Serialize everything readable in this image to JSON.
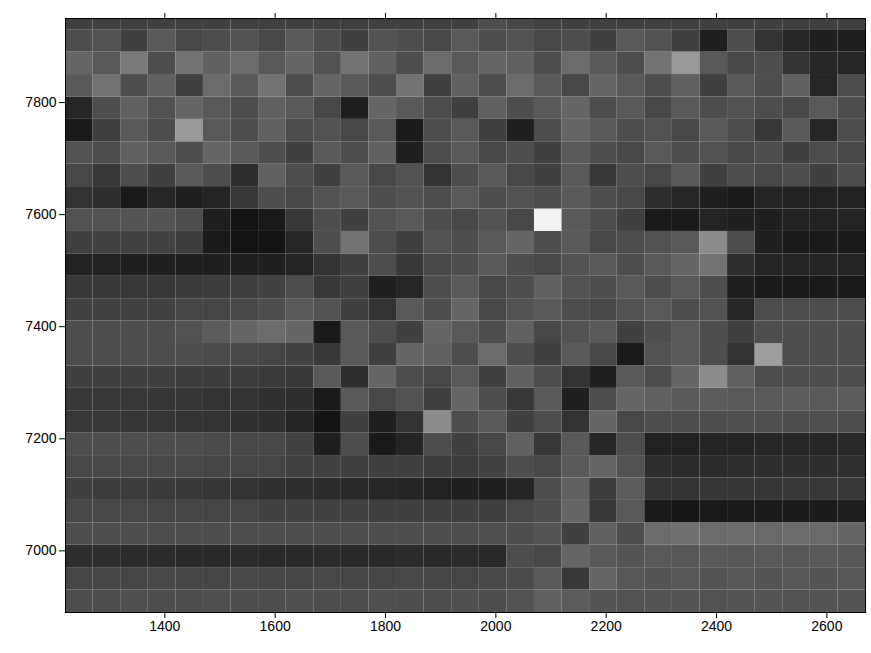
{
  "chart_data": {
    "type": "heatmap",
    "xlim": [
      1220,
      2670
    ],
    "ylim": [
      6890,
      7950
    ],
    "xticks": [
      1400,
      1600,
      1800,
      2000,
      2200,
      2400,
      2600
    ],
    "yticks": [
      7000,
      7200,
      7400,
      7600,
      7800
    ],
    "grid": false,
    "x_edges": [
      1220,
      1270,
      1320,
      1370,
      1420,
      1470,
      1520,
      1570,
      1620,
      1670,
      1720,
      1770,
      1820,
      1870,
      1920,
      1970,
      2020,
      2070,
      2120,
      2170,
      2220,
      2270,
      2320,
      2370,
      2420,
      2470,
      2520,
      2570,
      2620,
      2670
    ],
    "y_edges": [
      6890,
      6930,
      6970,
      7010,
      7050,
      7090,
      7130,
      7170,
      7210,
      7250,
      7290,
      7330,
      7370,
      7410,
      7450,
      7490,
      7530,
      7570,
      7610,
      7650,
      7690,
      7730,
      7770,
      7810,
      7850,
      7890,
      7930,
      7950
    ],
    "zlim": [
      0,
      1
    ],
    "cells": [
      [
        0.3,
        0.3,
        0.31,
        0.3,
        0.3,
        0.31,
        0.3,
        0.3,
        0.31,
        0.3,
        0.3,
        0.31,
        0.3,
        0.3,
        0.31,
        0.3,
        0.32,
        0.38,
        0.36,
        0.33,
        0.32,
        0.33,
        0.33,
        0.32,
        0.33,
        0.33,
        0.32,
        0.33,
        0.33
      ],
      [
        0.27,
        0.27,
        0.27,
        0.28,
        0.27,
        0.27,
        0.28,
        0.27,
        0.27,
        0.28,
        0.27,
        0.27,
        0.28,
        0.27,
        0.27,
        0.28,
        0.29,
        0.35,
        0.22,
        0.4,
        0.34,
        0.33,
        0.34,
        0.33,
        0.34,
        0.33,
        0.34,
        0.33,
        0.34
      ],
      [
        0.18,
        0.18,
        0.17,
        0.17,
        0.16,
        0.16,
        0.17,
        0.16,
        0.16,
        0.17,
        0.16,
        0.16,
        0.17,
        0.16,
        0.17,
        0.16,
        0.3,
        0.28,
        0.4,
        0.35,
        0.33,
        0.35,
        0.34,
        0.35,
        0.34,
        0.35,
        0.34,
        0.35,
        0.34
      ],
      [
        0.3,
        0.3,
        0.3,
        0.3,
        0.3,
        0.3,
        0.3,
        0.3,
        0.3,
        0.3,
        0.3,
        0.3,
        0.3,
        0.3,
        0.3,
        0.31,
        0.3,
        0.33,
        0.25,
        0.38,
        0.3,
        0.42,
        0.44,
        0.42,
        0.42,
        0.41,
        0.42,
        0.41,
        0.4
      ],
      [
        0.28,
        0.28,
        0.28,
        0.27,
        0.27,
        0.27,
        0.27,
        0.26,
        0.26,
        0.26,
        0.26,
        0.25,
        0.25,
        0.25,
        0.25,
        0.25,
        0.28,
        0.3,
        0.4,
        0.22,
        0.35,
        0.1,
        0.09,
        0.1,
        0.1,
        0.1,
        0.11,
        0.11,
        0.12
      ],
      [
        0.25,
        0.24,
        0.24,
        0.23,
        0.22,
        0.21,
        0.2,
        0.19,
        0.18,
        0.17,
        0.16,
        0.15,
        0.14,
        0.13,
        0.12,
        0.12,
        0.14,
        0.3,
        0.38,
        0.24,
        0.36,
        0.2,
        0.2,
        0.21,
        0.21,
        0.21,
        0.22,
        0.22,
        0.22
      ],
      [
        0.28,
        0.28,
        0.28,
        0.28,
        0.28,
        0.27,
        0.27,
        0.27,
        0.26,
        0.26,
        0.25,
        0.25,
        0.25,
        0.24,
        0.24,
        0.26,
        0.3,
        0.28,
        0.35,
        0.4,
        0.32,
        0.18,
        0.17,
        0.17,
        0.18,
        0.18,
        0.18,
        0.18,
        0.19
      ],
      [
        0.3,
        0.3,
        0.3,
        0.3,
        0.3,
        0.29,
        0.28,
        0.28,
        0.26,
        0.12,
        0.3,
        0.1,
        0.14,
        0.3,
        0.25,
        0.28,
        0.38,
        0.22,
        0.35,
        0.15,
        0.3,
        0.13,
        0.13,
        0.14,
        0.14,
        0.15,
        0.15,
        0.15,
        0.16
      ],
      [
        0.22,
        0.22,
        0.21,
        0.21,
        0.2,
        0.2,
        0.19,
        0.18,
        0.14,
        0.08,
        0.25,
        0.12,
        0.2,
        0.55,
        0.3,
        0.35,
        0.25,
        0.3,
        0.2,
        0.4,
        0.28,
        0.3,
        0.3,
        0.3,
        0.31,
        0.31,
        0.3,
        0.31,
        0.3
      ],
      [
        0.22,
        0.22,
        0.22,
        0.21,
        0.21,
        0.2,
        0.2,
        0.19,
        0.18,
        0.1,
        0.35,
        0.28,
        0.32,
        0.25,
        0.4,
        0.3,
        0.22,
        0.35,
        0.12,
        0.3,
        0.4,
        0.38,
        0.35,
        0.36,
        0.35,
        0.35,
        0.36,
        0.35,
        0.36
      ],
      [
        0.25,
        0.25,
        0.25,
        0.25,
        0.24,
        0.24,
        0.24,
        0.23,
        0.22,
        0.35,
        0.18,
        0.4,
        0.3,
        0.28,
        0.35,
        0.25,
        0.38,
        0.3,
        0.2,
        0.12,
        0.35,
        0.3,
        0.4,
        0.55,
        0.38,
        0.3,
        0.3,
        0.3,
        0.3
      ],
      [
        0.3,
        0.3,
        0.3,
        0.3,
        0.3,
        0.29,
        0.28,
        0.27,
        0.26,
        0.22,
        0.35,
        0.25,
        0.4,
        0.38,
        0.3,
        0.42,
        0.3,
        0.25,
        0.35,
        0.28,
        0.1,
        0.32,
        0.35,
        0.3,
        0.2,
        0.62,
        0.3,
        0.3,
        0.3
      ],
      [
        0.3,
        0.3,
        0.3,
        0.3,
        0.32,
        0.36,
        0.4,
        0.42,
        0.4,
        0.1,
        0.35,
        0.3,
        0.25,
        0.4,
        0.35,
        0.3,
        0.38,
        0.28,
        0.32,
        0.35,
        0.25,
        0.3,
        0.35,
        0.3,
        0.25,
        0.3,
        0.3,
        0.3,
        0.3
      ],
      [
        0.26,
        0.26,
        0.26,
        0.26,
        0.27,
        0.27,
        0.28,
        0.3,
        0.35,
        0.32,
        0.25,
        0.2,
        0.35,
        0.3,
        0.4,
        0.28,
        0.32,
        0.35,
        0.3,
        0.28,
        0.32,
        0.35,
        0.3,
        0.32,
        0.15,
        0.3,
        0.3,
        0.3,
        0.3
      ],
      [
        0.22,
        0.22,
        0.22,
        0.22,
        0.23,
        0.24,
        0.25,
        0.26,
        0.3,
        0.22,
        0.25,
        0.12,
        0.15,
        0.3,
        0.35,
        0.28,
        0.3,
        0.38,
        0.32,
        0.3,
        0.35,
        0.3,
        0.35,
        0.3,
        0.12,
        0.1,
        0.1,
        0.1,
        0.1
      ],
      [
        0.13,
        0.13,
        0.12,
        0.12,
        0.12,
        0.12,
        0.12,
        0.12,
        0.14,
        0.2,
        0.25,
        0.3,
        0.22,
        0.28,
        0.3,
        0.35,
        0.3,
        0.28,
        0.32,
        0.35,
        0.3,
        0.35,
        0.4,
        0.45,
        0.18,
        0.14,
        0.14,
        0.14,
        0.14
      ],
      [
        0.25,
        0.26,
        0.26,
        0.26,
        0.24,
        0.1,
        0.08,
        0.08,
        0.15,
        0.3,
        0.45,
        0.3,
        0.25,
        0.32,
        0.3,
        0.35,
        0.4,
        0.3,
        0.35,
        0.28,
        0.3,
        0.32,
        0.35,
        0.55,
        0.3,
        0.12,
        0.1,
        0.1,
        0.1
      ],
      [
        0.32,
        0.32,
        0.33,
        0.33,
        0.3,
        0.12,
        0.08,
        0.1,
        0.22,
        0.3,
        0.25,
        0.32,
        0.35,
        0.3,
        0.28,
        0.32,
        0.28,
        0.95,
        0.35,
        0.3,
        0.25,
        0.1,
        0.1,
        0.14,
        0.12,
        0.12,
        0.13,
        0.13,
        0.14
      ],
      [
        0.2,
        0.18,
        0.1,
        0.15,
        0.12,
        0.14,
        0.22,
        0.3,
        0.28,
        0.32,
        0.35,
        0.3,
        0.32,
        0.3,
        0.35,
        0.3,
        0.32,
        0.3,
        0.35,
        0.3,
        0.28,
        0.18,
        0.15,
        0.12,
        0.1,
        0.14,
        0.13,
        0.13,
        0.13
      ],
      [
        0.28,
        0.22,
        0.3,
        0.25,
        0.35,
        0.3,
        0.18,
        0.38,
        0.3,
        0.25,
        0.35,
        0.28,
        0.32,
        0.2,
        0.3,
        0.35,
        0.28,
        0.25,
        0.35,
        0.22,
        0.3,
        0.28,
        0.35,
        0.25,
        0.3,
        0.28,
        0.3,
        0.25,
        0.3
      ],
      [
        0.32,
        0.3,
        0.38,
        0.35,
        0.3,
        0.4,
        0.35,
        0.3,
        0.25,
        0.35,
        0.3,
        0.38,
        0.12,
        0.3,
        0.35,
        0.28,
        0.3,
        0.25,
        0.35,
        0.3,
        0.28,
        0.35,
        0.3,
        0.32,
        0.28,
        0.3,
        0.25,
        0.3,
        0.28
      ],
      [
        0.1,
        0.25,
        0.35,
        0.3,
        0.6,
        0.35,
        0.3,
        0.38,
        0.3,
        0.32,
        0.28,
        0.35,
        0.1,
        0.3,
        0.35,
        0.25,
        0.12,
        0.3,
        0.4,
        0.35,
        0.3,
        0.32,
        0.28,
        0.35,
        0.3,
        0.22,
        0.35,
        0.15,
        0.3
      ],
      [
        0.15,
        0.3,
        0.38,
        0.32,
        0.4,
        0.35,
        0.3,
        0.38,
        0.35,
        0.28,
        0.12,
        0.4,
        0.35,
        0.3,
        0.25,
        0.38,
        0.3,
        0.35,
        0.4,
        0.3,
        0.35,
        0.28,
        0.35,
        0.3,
        0.32,
        0.3,
        0.28,
        0.35,
        0.3
      ],
      [
        0.35,
        0.45,
        0.3,
        0.38,
        0.25,
        0.42,
        0.35,
        0.45,
        0.3,
        0.4,
        0.35,
        0.3,
        0.45,
        0.25,
        0.38,
        0.3,
        0.42,
        0.35,
        0.28,
        0.4,
        0.35,
        0.3,
        0.38,
        0.25,
        0.35,
        0.3,
        0.38,
        0.15,
        0.3
      ],
      [
        0.4,
        0.35,
        0.48,
        0.3,
        0.45,
        0.38,
        0.42,
        0.35,
        0.4,
        0.32,
        0.45,
        0.38,
        0.3,
        0.42,
        0.35,
        0.4,
        0.38,
        0.3,
        0.42,
        0.35,
        0.3,
        0.45,
        0.6,
        0.35,
        0.28,
        0.3,
        0.2,
        0.15,
        0.15
      ],
      [
        0.3,
        0.32,
        0.25,
        0.35,
        0.28,
        0.3,
        0.32,
        0.28,
        0.35,
        0.3,
        0.25,
        0.32,
        0.3,
        0.28,
        0.35,
        0.3,
        0.32,
        0.28,
        0.3,
        0.25,
        0.35,
        0.32,
        0.25,
        0.12,
        0.3,
        0.2,
        0.15,
        0.12,
        0.12
      ],
      [
        0.25,
        0.25,
        0.25,
        0.25,
        0.25,
        0.25,
        0.25,
        0.25,
        0.25,
        0.25,
        0.25,
        0.25,
        0.25,
        0.25,
        0.25,
        0.3,
        0.28,
        0.26,
        0.25,
        0.25,
        0.25,
        0.25,
        0.25,
        0.25,
        0.25,
        0.25,
        0.25,
        0.25,
        0.25
      ]
    ]
  }
}
